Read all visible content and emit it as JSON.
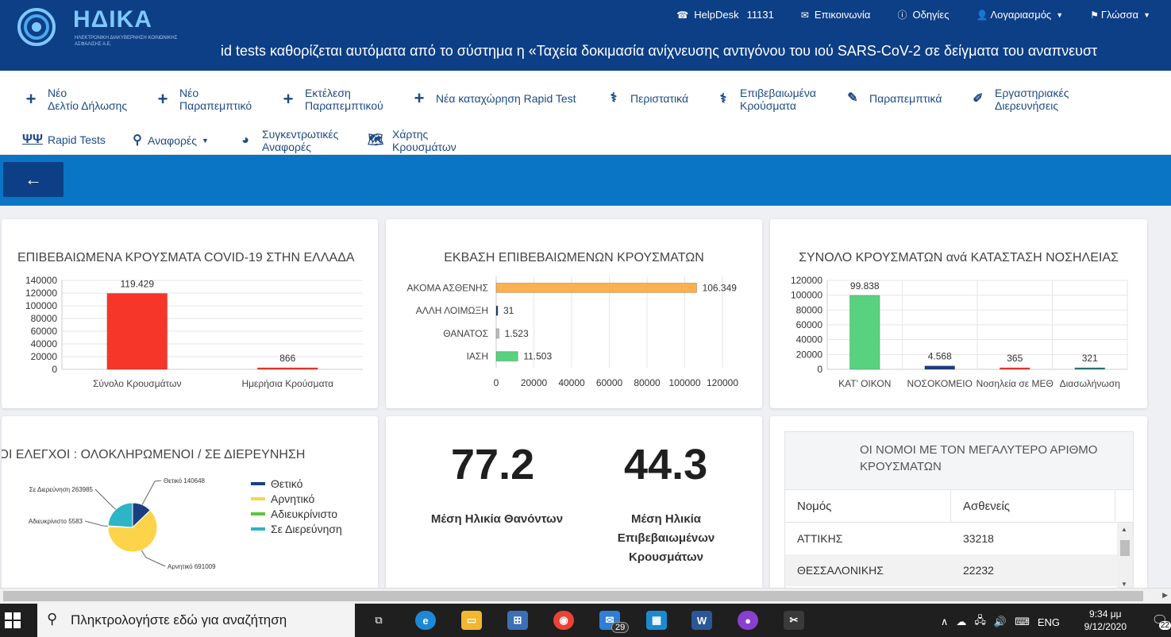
{
  "header": {
    "logo_text": "ΗΔΙΚΑ",
    "logo_subtitle": "ΗΛΕΚΤΡΟΝΙΚΗ ΔΙΑΚΥΒΕΡΝΗΣΗ ΚΟΙΝΩΝΙΚΗΣ ΑΣΦΑΛΙΣΗΣ Α.Ε.",
    "helpdesk_label": "HelpDesk",
    "helpdesk_number": "11131",
    "contact": "Επικοινωνία",
    "instructions": "Οδηγίες",
    "account": "Λογαριασμός",
    "language": "Γλώσσα",
    "marquee": "id tests καθορίζεται αυτόματα από το σύστημα η «Ταχεία δοκιμασία ανίχνευσης αντιγόνου του ιού SARS-CoV-2 σε δείγματα του αναπνευστ"
  },
  "nav": {
    "new_declaration": [
      "Νέο",
      "Δελτίο Δήλωσης"
    ],
    "new_referral": [
      "Νέο",
      "Παραπεμπτικό"
    ],
    "execute_referral": [
      "Εκτέλεση",
      "Παραπεμπτικού"
    ],
    "new_rapid": "Νέα καταχώρηση Rapid Test",
    "cases": "Περιστατικά",
    "confirmed": [
      "Επιβεβαιωμένα",
      "Κρούσματα"
    ],
    "referrals": "Παραπεμπτικά",
    "lab_tests": [
      "Εργαστηριακές",
      "Διερευνήσεις"
    ],
    "rapid_tests": "Rapid Tests",
    "reports": "Αναφορές",
    "summary_reports": [
      "Συγκεντρωτικές",
      "Αναφορές"
    ],
    "case_map": [
      "Χάρτης",
      "Κρουσμάτων"
    ]
  },
  "stats": {
    "avg_age_deceased": "77.2",
    "avg_age_deceased_label": "Μέση Ηλικία Θανόντων",
    "avg_age_confirmed": "44.3",
    "avg_age_confirmed_label": [
      "Μέση Ηλικία",
      "Επιβεβαιωμένων",
      "Κρουσμάτων"
    ]
  },
  "table": {
    "title": [
      "ΟΙ ΝΟΜΟΙ ΜΕ ΤΟΝ ΜΕΓΑΛΥΤΕΡΟ ΑΡΙΘΜΟ",
      "ΚΡΟΥΣΜΑΤΩΝ"
    ],
    "columns": [
      "Νομός",
      "Ασθενείς"
    ],
    "rows": [
      [
        "ΑΤΤΙΚΗΣ",
        "33218"
      ],
      [
        "ΘΕΣΣΑΛΟΝΙΚΗΣ",
        "22232"
      ]
    ]
  },
  "taskbar": {
    "search_placeholder": "Πληκτρολογήστε εδώ για αναζήτηση",
    "mail_badge": "29",
    "lang": "ENG",
    "time": "9:34 μμ",
    "date": "9/12/2020",
    "notif_count": "22"
  },
  "chart_data": [
    {
      "type": "bar",
      "title": "ΕΠΙΒΕΒΑΙΩΜΕΝΑ ΚΡΟΥΣΜΑΤΑ COVID-19 ΣΤΗΝ ΕΛΛΑΔΑ",
      "categories": [
        "Σύνολο Κρουσμάτων",
        "Ημερήσια Κρούσματα"
      ],
      "values": [
        119429,
        866
      ],
      "value_labels": [
        "119.429",
        "866"
      ],
      "colors": [
        "#f7362a",
        "#f7362a"
      ],
      "ylim": [
        0,
        140000
      ],
      "yticks": [
        0,
        20000,
        40000,
        60000,
        80000,
        100000,
        120000,
        140000
      ]
    },
    {
      "type": "bar",
      "orientation": "horizontal",
      "title": "ΕΚΒΑΣΗ ΕΠΙΒΕΒΑΙΩΜΕΝΩΝ ΚΡΟΥΣΜΑΤΩΝ",
      "categories": [
        "ΑΚΟΜΑ ΑΣΘΕΝΗΣ",
        "ΑΛΛΗ ΛΟΙΜΩΞΗ",
        "ΘΑΝΑΤΟΣ",
        "ΙΑΣΗ"
      ],
      "values": [
        106349,
        31,
        1523,
        11503
      ],
      "value_labels": [
        "106.349",
        "31",
        "1.523",
        "11.503"
      ],
      "colors": [
        "#fbb14f",
        "#1a3f80",
        "#bdbdbd",
        "#58d27f"
      ],
      "xlim": [
        0,
        120000
      ],
      "xticks": [
        0,
        20000,
        40000,
        60000,
        80000,
        100000,
        120000
      ]
    },
    {
      "type": "bar",
      "title": "ΣΥΝΟΛΟ ΚΡΟΥΣΜΑΤΩΝ ανά ΚΑΤΑΣΤΑΣΗ ΝΟΣΗΛΕΙΑΣ",
      "categories": [
        "ΚΑΤ’ ΟΙΚΟΝ",
        "ΝΟΣΟΚΟΜΕΙΟ",
        "Νοσηλεία σε ΜΕΘ",
        "Διασωλήνωση"
      ],
      "values": [
        99838,
        4568,
        365,
        321
      ],
      "value_labels": [
        "99.838",
        "4.568",
        "365",
        "321"
      ],
      "colors": [
        "#58d27f",
        "#1a3f80",
        "#f7362a",
        "#2c7c7c"
      ],
      "ylim": [
        0,
        120000
      ],
      "yticks": [
        0,
        20000,
        40000,
        60000,
        80000,
        100000,
        120000
      ]
    },
    {
      "type": "pie",
      "title": "ΕΡΓΑΣΤΗΡΙΑΚΟΙ ΕΛΕΓΧΟΙ  : ΟΛΟΚΛΗΡΩΜΕΝΟΙ / ΣΕ ΔΙΕΡΕΥΝΗΣΗ",
      "labels": [
        "Θετικό",
        "Αρνητικό",
        "Αδιευκρίνιστο",
        "Σε Διερεύνηση"
      ],
      "values": [
        140648,
        691009,
        5583,
        263985
      ],
      "colors": [
        "#1a3f80",
        "#fdd34a",
        "#5fc23c",
        "#2cb5c6"
      ],
      "slice_labels": [
        "Θετικό 140648",
        "Αρνητικό 691009",
        "Αδιευκρίνιστο 5583",
        "Σε Διερεύνηση 263985"
      ]
    }
  ]
}
